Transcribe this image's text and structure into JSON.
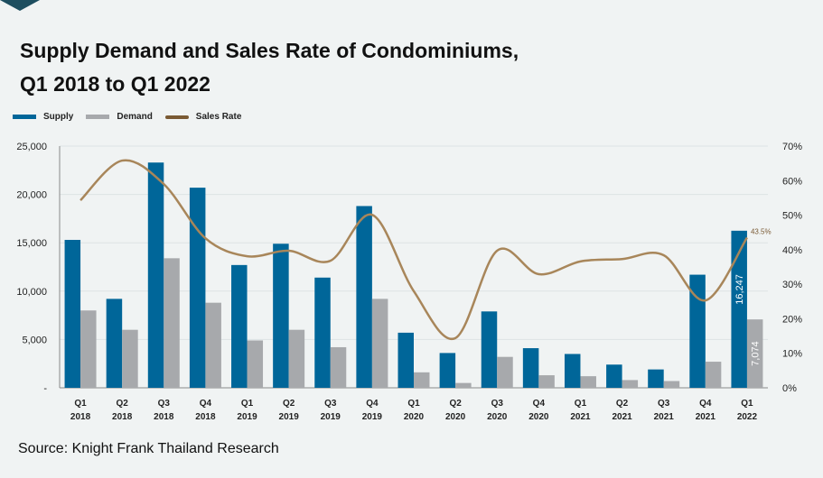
{
  "title_line1": "Supply Demand and Sales Rate of Condominiums,",
  "title_line2": "Q1 2018 to Q1 2022",
  "source": "Source: Knight Frank Thailand Research",
  "colors": {
    "supply": "#006699",
    "demand": "#a7a9ac",
    "sales_rate": "#a8865a",
    "label": "#7a5a34"
  },
  "chart_data": {
    "type": "bar",
    "categories": [
      [
        "Q1",
        "2018"
      ],
      [
        "Q2",
        "2018"
      ],
      [
        "Q3",
        "2018"
      ],
      [
        "Q4",
        "2018"
      ],
      [
        "Q1",
        "2019"
      ],
      [
        "Q2",
        "2019"
      ],
      [
        "Q3",
        "2019"
      ],
      [
        "Q4",
        "2019"
      ],
      [
        "Q1",
        "2020"
      ],
      [
        "Q2",
        "2020"
      ],
      [
        "Q3",
        "2020"
      ],
      [
        "Q4",
        "2020"
      ],
      [
        "Q1",
        "2021"
      ],
      [
        "Q2",
        "2021"
      ],
      [
        "Q3",
        "2021"
      ],
      [
        "Q4",
        "2021"
      ],
      [
        "Q1",
        "2022"
      ]
    ],
    "series": [
      {
        "name": "Supply",
        "type": "bar",
        "axis": "left",
        "values": [
          15300,
          9200,
          23300,
          20700,
          12700,
          14900,
          11400,
          18800,
          5700,
          3600,
          7900,
          4100,
          3500,
          2400,
          1900,
          11700,
          16247
        ]
      },
      {
        "name": "Demand",
        "type": "bar",
        "axis": "left",
        "values": [
          8000,
          6000,
          13400,
          8800,
          4900,
          6000,
          4200,
          9200,
          1600,
          500,
          3200,
          1300,
          1200,
          800,
          700,
          2700,
          7074
        ]
      },
      {
        "name": "Sales Rate",
        "type": "line",
        "axis": "right",
        "values": [
          54.3,
          65.8,
          59.0,
          43.3,
          38.1,
          39.7,
          36.8,
          50.1,
          28.0,
          14.4,
          39.7,
          32.9,
          36.6,
          37.3,
          38.4,
          25.3,
          43.5
        ]
      }
    ],
    "data_labels": {
      "supply_last": "16,247",
      "demand_last": "7,074",
      "sales_rate_last": "43.5%"
    },
    "left_axis": {
      "ylim": [
        0,
        25000
      ],
      "ticks": [
        "-",
        "5,000",
        "10,000",
        "15,000",
        "20,000",
        "25,000"
      ],
      "tick_values": [
        0,
        5000,
        10000,
        15000,
        20000,
        25000
      ]
    },
    "right_axis": {
      "ylim": [
        0,
        70
      ],
      "ticks": [
        "0%",
        "10%",
        "20%",
        "30%",
        "40%",
        "50%",
        "60%",
        "70%"
      ],
      "tick_values": [
        0,
        10,
        20,
        30,
        40,
        50,
        60,
        70
      ]
    },
    "legend": {
      "placement": "top-left",
      "entries": [
        "Supply",
        "Demand",
        "Sales Rate"
      ]
    },
    "grid": true
  }
}
